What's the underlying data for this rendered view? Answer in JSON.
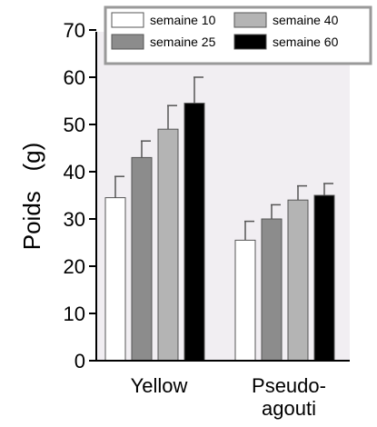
{
  "chart_data": {
    "type": "bar",
    "categories": [
      "Yellow",
      "Pseudo-agouti"
    ],
    "category_lines": [
      [
        "Yellow"
      ],
      [
        "Pseudo-",
        "agouti"
      ]
    ],
    "series": [
      {
        "name": "semaine 10",
        "values": [
          34.5,
          25.5
        ],
        "errors": [
          4.5,
          4.0
        ],
        "color": "#ffffff"
      },
      {
        "name": "semaine 25",
        "values": [
          43.0,
          30.0
        ],
        "errors": [
          3.5,
          3.0
        ],
        "color": "#8c8c8c"
      },
      {
        "name": "semaine 40",
        "values": [
          49.0,
          34.0
        ],
        "errors": [
          5.0,
          3.0
        ],
        "color": "#b4b4b4"
      },
      {
        "name": "semaine 60",
        "values": [
          54.5,
          35.0
        ],
        "errors": [
          5.5,
          2.5
        ],
        "color": "#000000"
      }
    ],
    "xlabel": "",
    "ylabel": "Poids   (g)",
    "ylim": [
      0,
      70
    ],
    "yticks": [
      0,
      10,
      20,
      30,
      40,
      50,
      60,
      70
    ],
    "grid": false,
    "legend": "top",
    "plot_background": "#f1eef2"
  }
}
